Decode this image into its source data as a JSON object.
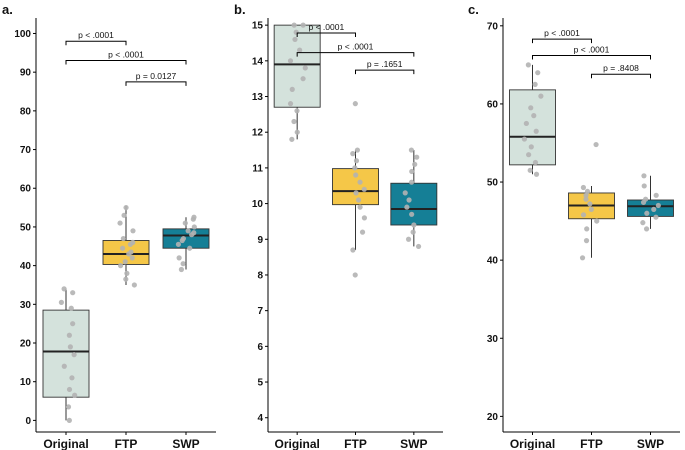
{
  "chart_data": [
    {
      "type": "box",
      "panel_label": "a.",
      "categories": [
        "Original",
        "FTP",
        "SWP"
      ],
      "y_ticks": [
        0,
        10,
        20,
        30,
        40,
        50,
        60,
        70,
        80,
        90,
        100
      ],
      "y_tick_labels": [
        "0",
        "10",
        "20",
        "30",
        "40",
        "50",
        "60",
        "70",
        "80",
        "90",
        "100"
      ],
      "ylim": [
        -3,
        104
      ],
      "boxes": [
        {
          "name": "Original",
          "color": "#d4e2dc",
          "q1": 6,
          "median": 17.8,
          "q3": 28.5,
          "whisker_low": 0,
          "whisker_high": 34,
          "points": [
            0,
            3.5,
            6.5,
            8,
            11,
            14,
            17,
            19,
            22,
            25,
            29,
            30.5,
            33,
            34
          ]
        },
        {
          "name": "FTP",
          "color": "#f5c748",
          "q1": 40.3,
          "median": 43,
          "q3": 46.5,
          "whisker_low": 35,
          "whisker_high": 55.5,
          "points": [
            35,
            36.5,
            38,
            40,
            41,
            42,
            43,
            43.5,
            44.5,
            45.5,
            46,
            47,
            49,
            51,
            53,
            55
          ]
        },
        {
          "name": "SWP",
          "color": "#157f96",
          "q1": 44.5,
          "median": 47.8,
          "q3": 49.5,
          "whisker_low": 39,
          "whisker_high": 52.5,
          "points": [
            39,
            40.5,
            42,
            44.5,
            45.5,
            46.5,
            47,
            48,
            48.5,
            49,
            50,
            51,
            52,
            52.5
          ]
        }
      ],
      "comparisons": [
        {
          "from": "Original",
          "to": "FTP",
          "y": 98,
          "label": "p < .0001"
        },
        {
          "from": "Original",
          "to": "SWP",
          "y": 93,
          "label": "p < .0001"
        },
        {
          "from": "FTP",
          "to": "SWP",
          "y": 87.5,
          "label": "p = 0.0127"
        }
      ]
    },
    {
      "type": "box",
      "panel_label": "b.",
      "categories": [
        "Original",
        "FTP",
        "SWP"
      ],
      "y_ticks": [
        4,
        5,
        6,
        7,
        8,
        9,
        10,
        11,
        12,
        13,
        14,
        15
      ],
      "y_tick_labels": [
        "4",
        "5",
        "6",
        "7",
        "8",
        "9",
        "10",
        "11",
        "12",
        "13",
        "14",
        "15"
      ],
      "ylim": [
        3.6,
        15.2
      ],
      "boxes": [
        {
          "name": "Original",
          "color": "#d4e2dc",
          "q1": 12.7,
          "median": 13.9,
          "q3": 15,
          "whisker_low": 11.8,
          "whisker_high": 15,
          "points": [
            11.8,
            12,
            12.3,
            12.6,
            12.8,
            13.2,
            13.5,
            13.8,
            14,
            14.3,
            14.6,
            14.8,
            15,
            15
          ]
        },
        {
          "name": "FTP",
          "color": "#f5c748",
          "q1": 9.97,
          "median": 10.35,
          "q3": 10.98,
          "whisker_low": 8.7,
          "whisker_high": 11.5,
          "points": [
            8,
            8.7,
            9.2,
            9.6,
            9.9,
            10.1,
            10.3,
            10.4,
            10.6,
            10.8,
            11,
            11.2,
            11.4,
            11.5,
            12.8
          ]
        },
        {
          "name": "SWP",
          "color": "#157f96",
          "q1": 9.4,
          "median": 9.85,
          "q3": 10.57,
          "whisker_low": 8.8,
          "whisker_high": 11.5,
          "points": [
            8.8,
            9,
            9.2,
            9.4,
            9.7,
            9.9,
            10.1,
            10.3,
            10.6,
            10.9,
            11.1,
            11.3,
            11.5
          ]
        }
      ],
      "comparisons": [
        {
          "from": "Original",
          "to": "FTP",
          "y": 14.78,
          "label": "p < .0001"
        },
        {
          "from": "Original",
          "to": "SWP",
          "y": 14.23,
          "label": "p < .0001"
        },
        {
          "from": "FTP",
          "to": "SWP",
          "y": 13.74,
          "label": "p = .1651"
        }
      ]
    },
    {
      "type": "box",
      "panel_label": "c.",
      "categories": [
        "Original",
        "FTP",
        "SWP"
      ],
      "y_ticks": [
        20,
        30,
        40,
        50,
        60,
        70
      ],
      "y_tick_labels": [
        "20",
        "30",
        "40",
        "50",
        "60",
        "70"
      ],
      "ylim": [
        18,
        71
      ],
      "boxes": [
        {
          "name": "Original",
          "color": "#d4e2dc",
          "q1": 52.2,
          "median": 55.8,
          "q3": 61.8,
          "whisker_low": 51,
          "whisker_high": 65,
          "points": [
            51,
            51.5,
            52.5,
            53.5,
            54.5,
            55.5,
            56.5,
            57.5,
            58.5,
            59.5,
            61,
            62.5,
            64,
            65
          ]
        },
        {
          "name": "FTP",
          "color": "#f5c748",
          "q1": 45.3,
          "median": 47,
          "q3": 48.6,
          "whisker_low": 40.3,
          "whisker_high": 49.5,
          "points": [
            40.3,
            42.5,
            44,
            45,
            45.8,
            46.5,
            47.2,
            47.8,
            48.3,
            48.8,
            49.3,
            54.8
          ]
        },
        {
          "name": "SWP",
          "color": "#157f96",
          "q1": 45.6,
          "median": 46.9,
          "q3": 47.7,
          "whisker_low": 44,
          "whisker_high": 50.8,
          "points": [
            44,
            44.8,
            45.5,
            46,
            46.5,
            47,
            47.4,
            47.8,
            48.3,
            49.5,
            50.8
          ]
        }
      ],
      "comparisons": [
        {
          "from": "Original",
          "to": "FTP",
          "y": 68.3,
          "label": "p < .0001"
        },
        {
          "from": "Original",
          "to": "SWP",
          "y": 66.2,
          "label": "p < .0001"
        },
        {
          "from": "FTP",
          "to": "SWP",
          "y": 63.8,
          "label": "p = .8408"
        }
      ]
    }
  ]
}
